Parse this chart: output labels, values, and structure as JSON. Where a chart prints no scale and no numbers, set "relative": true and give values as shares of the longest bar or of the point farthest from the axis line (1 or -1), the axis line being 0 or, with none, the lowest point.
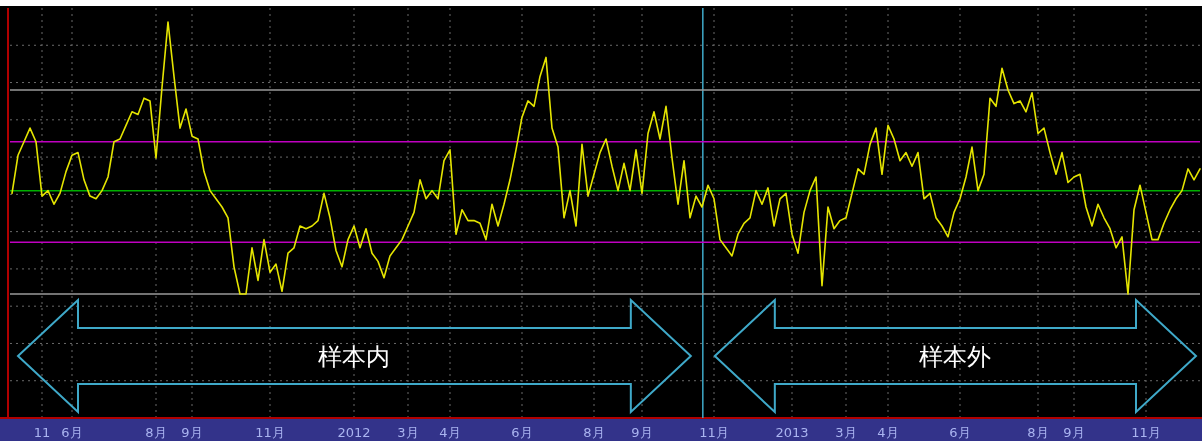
{
  "chart_data": {
    "type": "line",
    "relative": true,
    "grid": true,
    "line_style": "solid",
    "annotations": [
      "样本内",
      "样本外"
    ],
    "categories": [
      null,
      null,
      null,
      null,
      null,
      "11",
      null,
      null,
      null,
      null,
      "6月",
      null,
      null,
      null,
      null,
      null,
      null,
      null,
      null,
      null,
      null,
      null,
      null,
      null,
      "8月",
      null,
      null,
      null,
      null,
      null,
      "9月",
      null,
      null,
      null,
      null,
      null,
      null,
      null,
      null,
      null,
      null,
      null,
      null,
      "11月",
      null,
      null,
      null,
      null,
      null,
      null,
      null,
      null,
      null,
      null,
      null,
      null,
      null,
      "2012",
      null,
      null,
      null,
      null,
      null,
      null,
      null,
      null,
      "3月",
      null,
      null,
      null,
      null,
      null,
      null,
      "4月",
      null,
      null,
      null,
      null,
      null,
      null,
      null,
      null,
      null,
      null,
      null,
      "6月",
      null,
      null,
      null,
      null,
      null,
      null,
      null,
      null,
      null,
      null,
      null,
      "8月",
      null,
      null,
      null,
      null,
      null,
      null,
      null,
      "9月",
      null,
      null,
      null,
      null,
      null,
      null,
      null,
      null,
      null,
      null,
      null,
      "11月",
      null,
      null,
      null,
      null,
      null,
      null,
      null,
      null,
      null,
      null,
      null,
      null,
      "2013",
      null,
      null,
      null,
      null,
      null,
      null,
      null,
      null,
      "3月",
      null,
      null,
      null,
      null,
      null,
      null,
      "4月",
      null,
      null,
      null,
      null,
      null,
      null,
      null,
      null,
      null,
      null,
      null,
      "6月",
      null,
      null,
      null,
      null,
      null,
      null,
      null,
      null,
      null,
      null,
      null,
      null,
      "8月",
      null,
      null,
      null,
      null,
      null,
      "9月",
      null,
      null,
      null,
      null,
      null,
      null,
      null,
      null,
      null,
      null,
      null,
      "11月",
      null,
      null,
      null,
      null,
      null,
      null,
      null,
      null,
      null
    ],
    "series": [
      {
        "color": "#e5e500",
        "values": [
          0.37,
          0.51,
          0.56,
          0.61,
          0.56,
          0.36,
          0.38,
          0.33,
          0.37,
          0.45,
          0.51,
          0.52,
          0.42,
          0.36,
          0.35,
          0.38,
          0.43,
          0.56,
          0.57,
          0.62,
          0.67,
          0.66,
          0.72,
          0.71,
          0.5,
          0.76,
          1,
          0.8,
          0.61,
          0.68,
          0.58,
          0.57,
          0.45,
          0.38,
          0.35,
          0.32,
          0.28,
          0.1,
          0,
          0,
          0.17,
          0.05,
          0.2,
          0.08,
          0.11,
          0.01,
          0.15,
          0.17,
          0.25,
          0.24,
          0.25,
          0.27,
          0.37,
          0.28,
          0.16,
          0.1,
          0.2,
          0.25,
          0.17,
          0.24,
          0.15,
          0.12,
          0.06,
          0.14,
          0.17,
          0.2,
          0.25,
          0.3,
          0.42,
          0.35,
          0.38,
          0.35,
          0.49,
          0.53,
          0.22,
          0.31,
          0.27,
          0.27,
          0.26,
          0.2,
          0.33,
          0.25,
          0.33,
          0.42,
          0.53,
          0.65,
          0.71,
          0.69,
          0.8,
          0.87,
          0.61,
          0.54,
          0.28,
          0.38,
          0.25,
          0.55,
          0.36,
          0.44,
          0.52,
          0.57,
          0.47,
          0.38,
          0.48,
          0.38,
          0.53,
          0.37,
          0.59,
          0.67,
          0.57,
          0.69,
          0.5,
          0.33,
          0.49,
          0.28,
          0.36,
          0.32,
          0.4,
          0.35,
          0.2,
          0.17,
          0.14,
          0.22,
          0.26,
          0.28,
          0.38,
          0.33,
          0.39,
          0.25,
          0.35,
          0.37,
          0.22,
          0.15,
          0.3,
          0.38,
          0.43,
          0.03,
          0.32,
          0.24,
          0.27,
          0.28,
          0.37,
          0.46,
          0.44,
          0.55,
          0.61,
          0.44,
          0.62,
          0.57,
          0.49,
          0.52,
          0.47,
          0.52,
          0.35,
          0.37,
          0.28,
          0.25,
          0.21,
          0.3,
          0.35,
          0.43,
          0.54,
          0.38,
          0.44,
          0.72,
          0.69,
          0.83,
          0.75,
          0.7,
          0.71,
          0.67,
          0.74,
          0.59,
          0.61,
          0.52,
          0.44,
          0.52,
          0.41,
          0.43,
          0.44,
          0.32,
          0.25,
          0.33,
          0.28,
          0.24,
          0.17,
          0.21,
          0,
          0.31,
          0.4,
          0.3,
          0.2,
          0.2,
          0.26,
          0.31,
          0.35,
          0.38,
          0.46,
          0.42,
          0.46
        ]
      }
    ],
    "ref_lines": [
      {
        "axis": "y",
        "value": 0.75,
        "color": "#9a9a9a"
      },
      {
        "axis": "y",
        "value": 0.56,
        "color": "#c000c0"
      },
      {
        "axis": "y",
        "value": 0.38,
        "color": "#00b000"
      },
      {
        "axis": "y",
        "value": 0.19,
        "color": "#c000c0"
      },
      {
        "axis": "y",
        "value": 0,
        "color": "#9a9a9a"
      }
    ]
  }
}
